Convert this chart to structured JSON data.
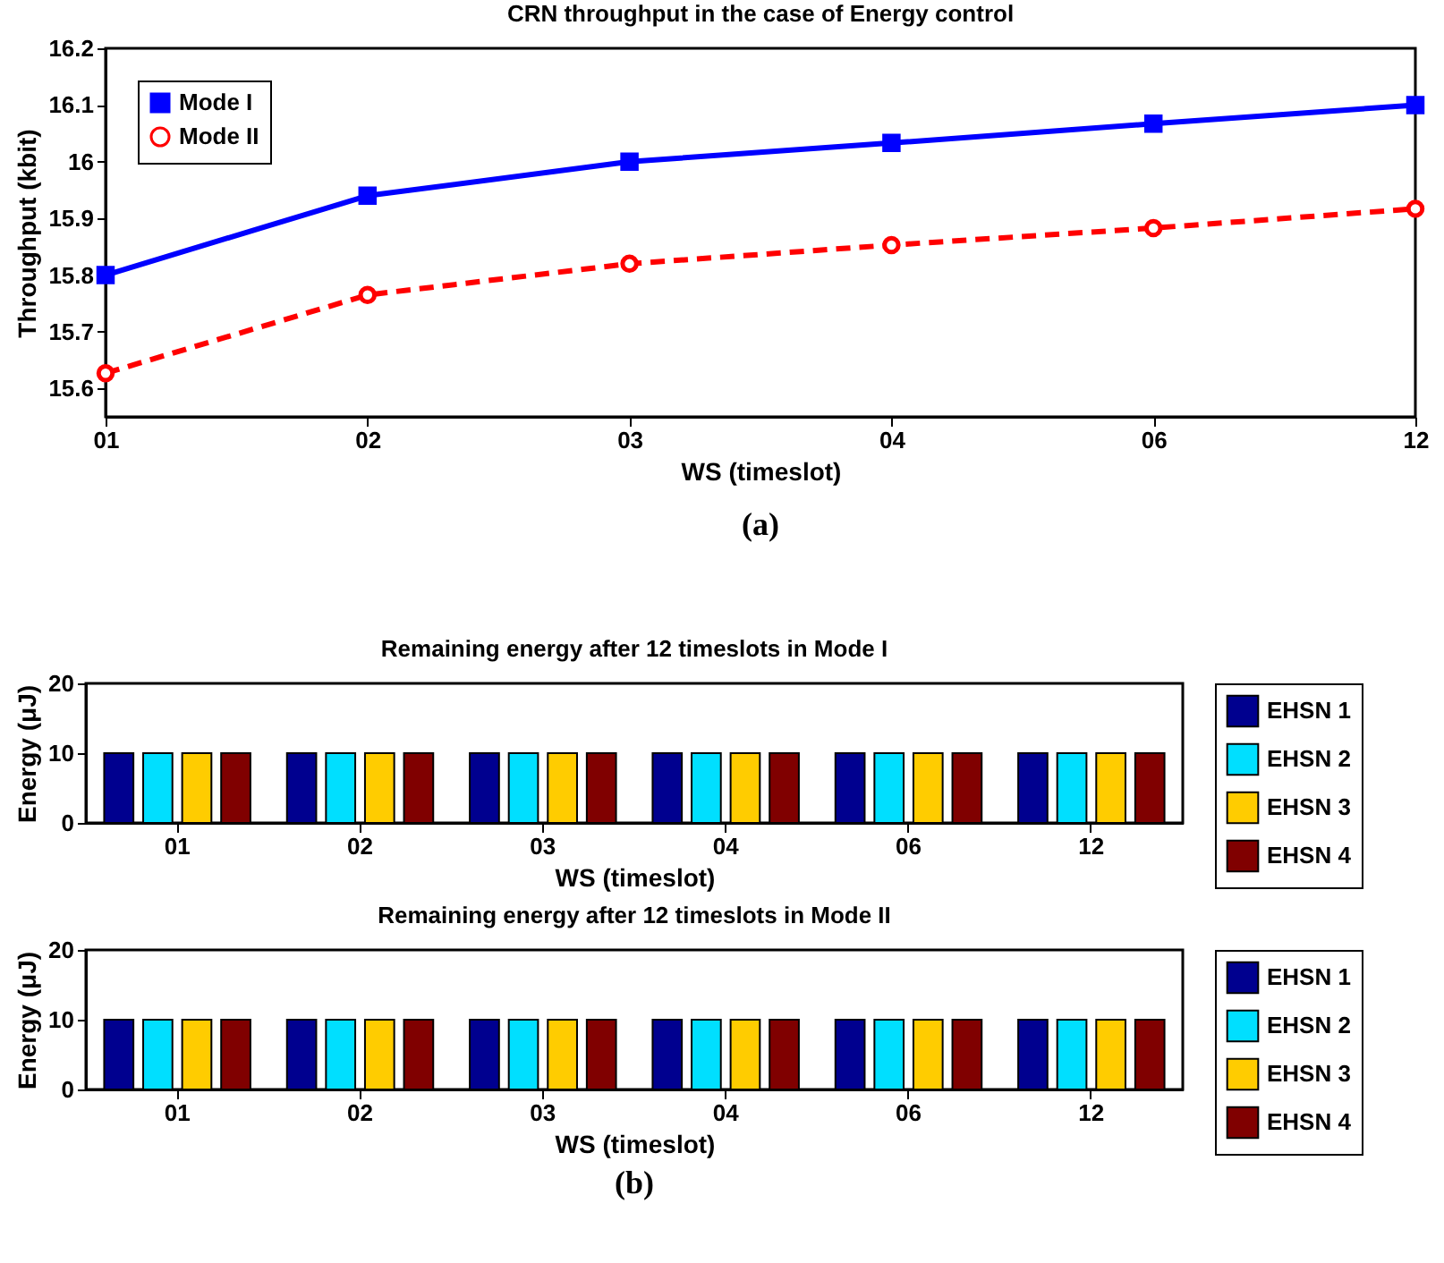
{
  "chart_data": [
    {
      "type": "line",
      "title": "CRN throughput in the case of Energy control",
      "xlabel": "WS (timeslot)",
      "ylabel": "Throughput (kbit)",
      "categories": [
        "01",
        "02",
        "03",
        "04",
        "06",
        "12"
      ],
      "ylim": [
        15.55,
        16.2
      ],
      "yticks": [
        15.6,
        15.7,
        15.8,
        15.9,
        16,
        16.1,
        16.2
      ],
      "grid": false,
      "legend": "top left",
      "annotations": [
        "(a)"
      ],
      "series": [
        {
          "name": "Mode I",
          "color": "#0000ff",
          "marker": "square",
          "line_style": "solid",
          "values": [
            15.8,
            15.94,
            16.0,
            16.033,
            16.067,
            16.1
          ]
        },
        {
          "name": "Mode II",
          "color": "#ff0000",
          "marker": "circle",
          "line_style": "dashed",
          "values": [
            15.627,
            15.765,
            15.82,
            15.853,
            15.883,
            15.917
          ]
        }
      ]
    },
    {
      "type": "bar",
      "title": "Remaining energy after 12 timeslots in Mode I",
      "xlabel": "WS (timeslot)",
      "ylabel": "Energy (μJ)",
      "categories": [
        "01",
        "02",
        "03",
        "04",
        "06",
        "12"
      ],
      "ylim": [
        0,
        20
      ],
      "yticks": [
        0,
        10,
        20
      ],
      "grid": false,
      "legend": "right",
      "series": [
        {
          "name": "EHSN 1",
          "color": "#00008f",
          "values": [
            10,
            10,
            10,
            10,
            10,
            10
          ]
        },
        {
          "name": "EHSN 2",
          "color": "#00dfff",
          "values": [
            10,
            10,
            10,
            10,
            10,
            10
          ]
        },
        {
          "name": "EHSN 3",
          "color": "#ffcc00",
          "values": [
            10,
            10,
            10,
            10,
            10,
            10
          ]
        },
        {
          "name": "EHSN 4",
          "color": "#800000",
          "values": [
            10,
            10,
            10,
            10,
            10,
            10
          ]
        }
      ]
    },
    {
      "type": "bar",
      "title": "Remaining energy after 12 timeslots in Mode II",
      "xlabel": "WS (timeslot)",
      "ylabel": "Energy (μJ)",
      "categories": [
        "01",
        "02",
        "03",
        "04",
        "06",
        "12"
      ],
      "ylim": [
        0,
        20
      ],
      "yticks": [
        0,
        10,
        20
      ],
      "grid": false,
      "legend": "right",
      "annotations": [
        "(b)"
      ],
      "series": [
        {
          "name": "EHSN 1",
          "color": "#00008f",
          "values": [
            10,
            10,
            10,
            10,
            10,
            10
          ]
        },
        {
          "name": "EHSN 2",
          "color": "#00dfff",
          "values": [
            10,
            10,
            10,
            10,
            10,
            10
          ]
        },
        {
          "name": "EHSN 3",
          "color": "#ffcc00",
          "values": [
            10,
            10,
            10,
            10,
            10,
            10
          ]
        },
        {
          "name": "EHSN 4",
          "color": "#800000",
          "values": [
            10,
            10,
            10,
            10,
            10,
            10
          ]
        }
      ]
    }
  ]
}
